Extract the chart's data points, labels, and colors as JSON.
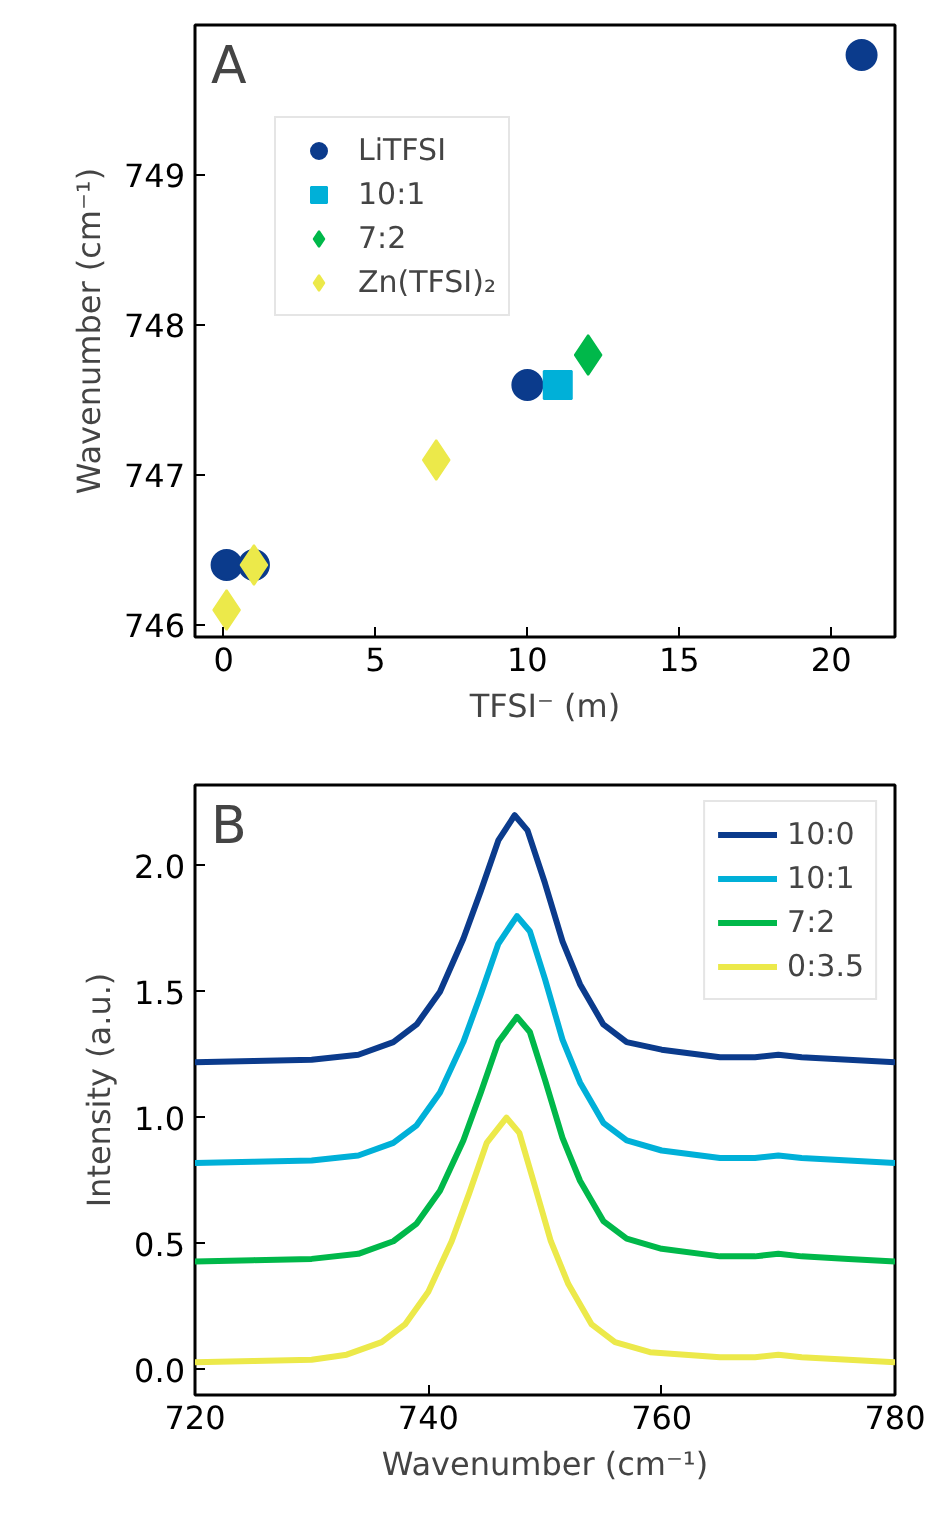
{
  "chart_data": [
    {
      "type": "scatter",
      "xlabel": "TFSI⁻ (m)",
      "ylabel": "Wavenumber (cm⁻¹)",
      "annotations": [
        "A"
      ],
      "legend": "top left",
      "grid": false,
      "xlim": [
        -0.94,
        22.1
      ],
      "ylim": [
        745.92,
        750.0
      ],
      "xticks": [
        0,
        5,
        10,
        15,
        20
      ],
      "yticks": [
        746,
        747,
        748,
        749
      ],
      "series": [
        {
          "name": "LiTFSI",
          "color": "#0b3b8c",
          "marker": "circle",
          "x": [
            0.1,
            1,
            10,
            21
          ],
          "values": [
            746.4,
            746.4,
            747.6,
            749.8
          ]
        },
        {
          "name": "10:1",
          "color": "#00b0d8",
          "marker": "square",
          "x": [
            11
          ],
          "values": [
            747.6
          ]
        },
        {
          "name": "7:2",
          "color": "#00b84a",
          "marker": "diamond",
          "x": [
            12
          ],
          "values": [
            747.8
          ]
        },
        {
          "name": "Zn(TFSI)₂",
          "color": "#ece94a",
          "marker": "diamond",
          "x": [
            0.1,
            1,
            7
          ],
          "values": [
            746.1,
            746.4,
            747.1
          ]
        }
      ]
    },
    {
      "type": "line",
      "xlabel": "Wavenumber (cm⁻¹)",
      "ylabel": "Intensity (a.u.)",
      "annotations": [
        "B"
      ],
      "legend": "top right",
      "grid": false,
      "xlim": [
        720,
        780
      ],
      "ylim": [
        -0.1,
        2.32
      ],
      "xticks": [
        720,
        740,
        760,
        780
      ],
      "yticks": [
        {
          "value": 0,
          "label": "0.0"
        },
        {
          "value": 0.5,
          "label": "0.5"
        },
        {
          "value": 1,
          "label": "1.0"
        },
        {
          "value": 1.5,
          "label": "1.5"
        },
        {
          "value": 2,
          "label": "2.0"
        }
      ],
      "series": [
        {
          "name": "10:0",
          "color": "#0b3b8c",
          "x": [
            720,
            725,
            730,
            734,
            737,
            739,
            741,
            743,
            744.5,
            746,
            747.4,
            748.5,
            750,
            751.5,
            753,
            755,
            757,
            760,
            765,
            768,
            770,
            772,
            776,
            780
          ],
          "values": [
            1.22,
            1.225,
            1.23,
            1.25,
            1.3,
            1.37,
            1.5,
            1.71,
            1.9,
            2.1,
            2.2,
            2.14,
            1.93,
            1.7,
            1.53,
            1.37,
            1.3,
            1.27,
            1.24,
            1.24,
            1.25,
            1.24,
            1.23,
            1.22
          ]
        },
        {
          "name": "10:1",
          "color": "#00b0d8",
          "x": [
            720,
            725,
            730,
            734,
            737,
            739,
            741,
            743,
            744.5,
            746,
            747.6,
            748.7,
            750,
            751.5,
            753,
            755,
            757,
            760,
            765,
            768,
            770,
            772,
            776,
            780
          ],
          "values": [
            0.82,
            0.825,
            0.83,
            0.85,
            0.9,
            0.97,
            1.1,
            1.3,
            1.49,
            1.69,
            1.8,
            1.74,
            1.55,
            1.31,
            1.14,
            0.98,
            0.91,
            0.87,
            0.84,
            0.84,
            0.85,
            0.84,
            0.83,
            0.82
          ]
        },
        {
          "name": "7:2",
          "color": "#00b84a",
          "x": [
            720,
            725,
            730,
            734,
            737,
            739,
            741,
            743,
            744.5,
            746,
            747.6,
            748.7,
            750,
            751.5,
            753,
            755,
            757,
            760,
            765,
            768,
            770,
            772,
            776,
            780
          ],
          "values": [
            0.43,
            0.435,
            0.44,
            0.46,
            0.51,
            0.58,
            0.71,
            0.91,
            1.1,
            1.3,
            1.4,
            1.34,
            1.15,
            0.92,
            0.75,
            0.59,
            0.52,
            0.48,
            0.45,
            0.45,
            0.46,
            0.45,
            0.44,
            0.43
          ]
        },
        {
          "name": "0:3.5",
          "color": "#ece94a",
          "x": [
            720,
            725,
            730,
            733,
            736,
            738,
            740,
            742,
            743.5,
            745,
            746.7,
            747.8,
            749,
            750.5,
            752,
            754,
            756,
            759,
            765,
            768,
            770,
            772,
            776,
            780
          ],
          "values": [
            0.03,
            0.035,
            0.04,
            0.06,
            0.11,
            0.18,
            0.31,
            0.51,
            0.7,
            0.9,
            1.0,
            0.94,
            0.75,
            0.51,
            0.34,
            0.18,
            0.11,
            0.07,
            0.05,
            0.05,
            0.06,
            0.05,
            0.04,
            0.03
          ]
        }
      ]
    }
  ]
}
